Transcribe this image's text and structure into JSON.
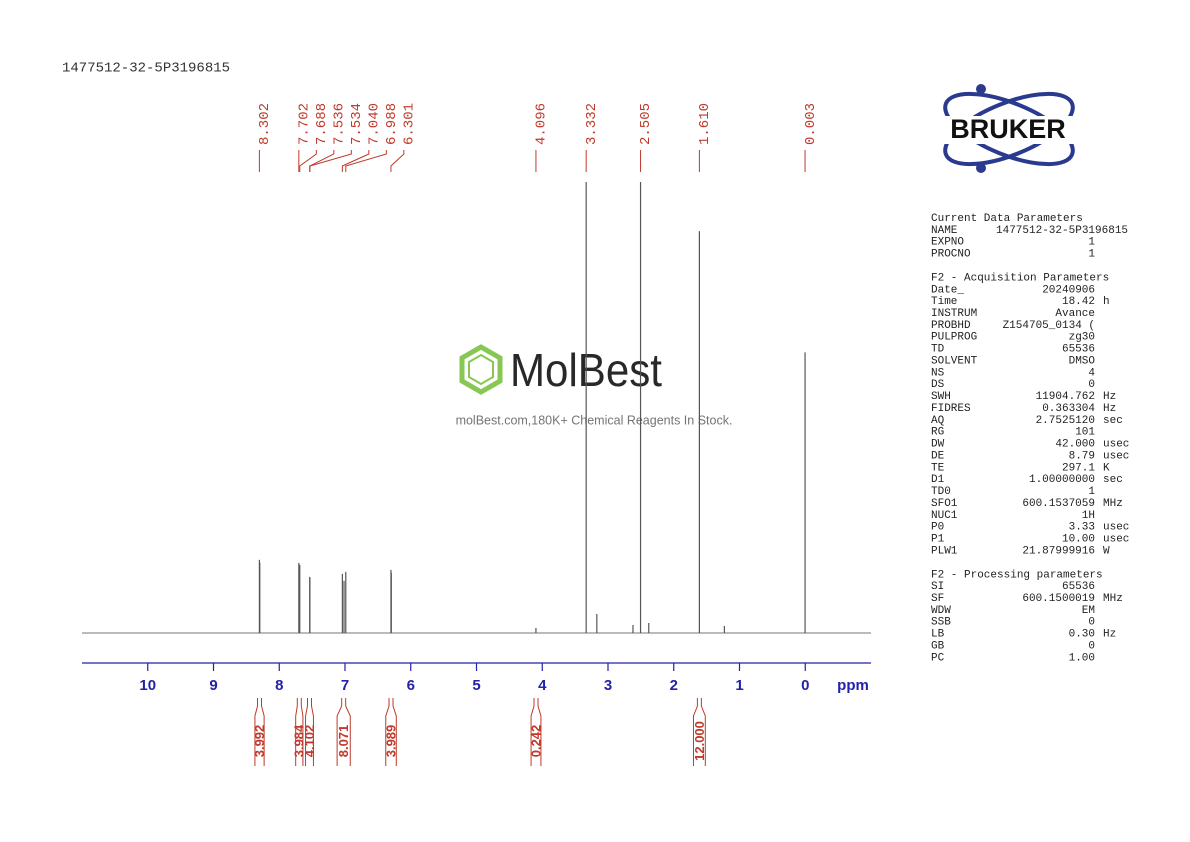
{
  "title": "1477512-32-5P3196815",
  "chart_data": {
    "type": "nmr",
    "x": [
      8.302,
      8.296,
      7.702,
      7.688,
      7.536,
      7.534,
      7.04,
      7.015,
      6.988,
      6.301,
      6.296,
      4.096,
      3.332,
      3.17,
      2.62,
      2.505,
      2.38,
      1.61,
      1.23,
      0.003
    ],
    "values": [
      73,
      70,
      70,
      68,
      56,
      55,
      59,
      52,
      61,
      63,
      60,
      5,
      450,
      19,
      8,
      450,
      10,
      401,
      7,
      280
    ],
    "color": "#555555",
    "ylim": [
      0,
      450
    ],
    "xlim": [
      11,
      -1
    ],
    "xticks": [
      10,
      9,
      8,
      7,
      6,
      5,
      4,
      3,
      2,
      1,
      0
    ],
    "xlabel": "ppm",
    "peaks": {
      "values": [
        8.302,
        7.702,
        7.688,
        7.536,
        7.534,
        7.04,
        6.988,
        6.301,
        4.096,
        3.332,
        2.505,
        1.61,
        0.003
      ],
      "value_labels": [
        "8.302",
        "7.702",
        "7.688",
        "7.536",
        "7.534",
        "7.040",
        "6.988",
        "6.301",
        "4.096",
        "3.332",
        "2.505",
        "1.610",
        "0.003"
      ]
    },
    "integrals": {
      "values": [
        3.992,
        3.984,
        4.102,
        8.071,
        3.989,
        0.242,
        12.0
      ],
      "value_labels": [
        "3.992",
        "3.984",
        "4.102",
        "8.071",
        "3.989",
        "0.242",
        "12.000"
      ],
      "ranges": [
        [
          8.37,
          8.23
        ],
        [
          7.75,
          7.64
        ],
        [
          7.6,
          7.48
        ],
        [
          7.12,
          6.92
        ],
        [
          6.38,
          6.22
        ],
        [
          4.17,
          4.02
        ],
        [
          1.7,
          1.52
        ]
      ]
    }
  },
  "watermark": {
    "brand": "MolBest",
    "tagline": "molBest.com,180K+ Chemical Reagents In Stock."
  },
  "logo": "BRUKER",
  "parameters": [
    {
      "heading": "Current Data Parameters",
      "rows": [
        [
          "NAME",
          "1477512-32-5P3196815"
        ],
        [
          "EXPNO",
          "1"
        ],
        [
          "PROCNO",
          "1"
        ]
      ]
    },
    {
      "heading": "F2 - Acquisition Parameters",
      "rows": [
        [
          "Date_",
          "20240906"
        ],
        [
          "Time",
          "18.42",
          "h"
        ],
        [
          "INSTRUM",
          "Avance"
        ],
        [
          "PROBHD",
          "Z154705_0134 ("
        ],
        [
          "PULPROG",
          "zg30"
        ],
        [
          "TD",
          "65536"
        ],
        [
          "SOLVENT",
          "DMSO"
        ],
        [
          "NS",
          "4"
        ],
        [
          "DS",
          "0"
        ],
        [
          "SWH",
          "11904.762",
          "Hz"
        ],
        [
          "FIDRES",
          "0.363304",
          "Hz"
        ],
        [
          "AQ",
          "2.7525120",
          "sec"
        ],
        [
          "RG",
          "101"
        ],
        [
          "DW",
          "42.000",
          "usec"
        ],
        [
          "DE",
          "8.79",
          "usec"
        ],
        [
          "TE",
          "297.1",
          "K"
        ],
        [
          "D1",
          "1.00000000",
          "sec"
        ],
        [
          "TD0",
          "1"
        ],
        [
          "SFO1",
          "600.1537059",
          "MHz"
        ],
        [
          "NUC1",
          "1H"
        ],
        [
          "P0",
          "3.33",
          "usec"
        ],
        [
          "P1",
          "10.00",
          "usec"
        ],
        [
          "PLW1",
          "21.87999916",
          "W"
        ]
      ]
    },
    {
      "heading": "F2 - Processing parameters",
      "rows": [
        [
          "SI",
          "65536"
        ],
        [
          "SF",
          "600.1500019",
          "MHz"
        ],
        [
          "WDW",
          "EM"
        ],
        [
          "SSB",
          "0"
        ],
        [
          "LB",
          "0.30",
          "Hz"
        ],
        [
          "GB",
          "0"
        ],
        [
          "PC",
          "1.00"
        ]
      ]
    }
  ]
}
